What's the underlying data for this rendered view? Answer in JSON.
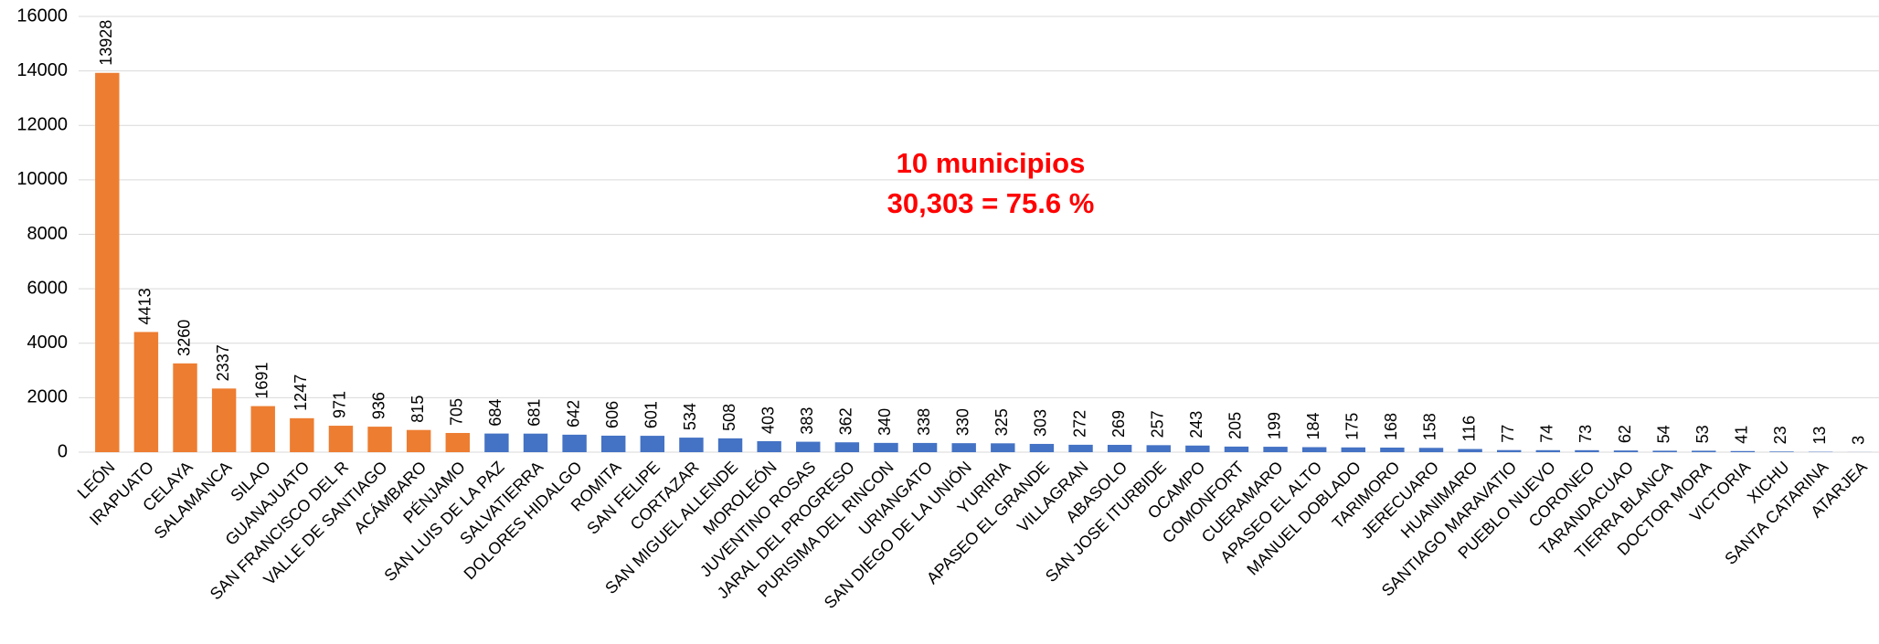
{
  "chart_data": {
    "type": "bar",
    "annotations": [
      "10 municipios",
      "30,303 = 75.6 %"
    ],
    "categories": [
      "LEÓN",
      "IRAPUATO",
      "CELAYA",
      "SALAMANCA",
      "SILAO",
      "GUANAJUATO",
      "SAN FRANCISCO DEL R",
      "VALLE DE SANTIAGO",
      "ACÁMBARO",
      "PÉNJAMO",
      "SAN LUIS DE LA PAZ",
      "SALVATIERRA",
      "DOLORES HIDALGO",
      "ROMITA",
      "SAN FELIPE",
      "CORTAZAR",
      "SAN MIGUEL ALLENDE",
      "MOROLEÓN",
      "JUVENTINO ROSAS",
      "JARAL DEL PROGRESO",
      "PURISIMA DEL RINCON",
      "URIANGATO",
      "SAN DIEGO DE LA UNIÓN",
      "YURIRIA",
      "APASEO EL GRANDE",
      "VILLAGRAN",
      "ABASOLO",
      "SAN JOSE ITURBIDE",
      "OCAMPO",
      "COMONFORT",
      "CUERAMARO",
      "APASEO EL ALTO",
      "MANUEL DOBLADO",
      "TARIMORO",
      "JERECUARO",
      "HUANIMARO",
      "SANTIAGO MARAVATIO",
      "PUEBLO NUEVO",
      "CORONEO",
      "TARANDACUAO",
      "TIERRA BLANCA",
      "DOCTOR MORA",
      "VICTORIA",
      "XICHU",
      "SANTA CATARINA",
      "ATARJEA"
    ],
    "values": [
      13928,
      4413,
      3260,
      2337,
      1691,
      1247,
      971,
      936,
      815,
      705,
      684,
      681,
      642,
      606,
      601,
      534,
      508,
      403,
      383,
      362,
      340,
      338,
      330,
      325,
      303,
      272,
      269,
      257,
      243,
      205,
      199,
      184,
      175,
      168,
      158,
      116,
      77,
      74,
      73,
      62,
      54,
      53,
      41,
      23,
      13,
      3
    ],
    "colors": [
      "#ed7d31",
      "#ed7d31",
      "#ed7d31",
      "#ed7d31",
      "#ed7d31",
      "#ed7d31",
      "#ed7d31",
      "#ed7d31",
      "#ed7d31",
      "#ed7d31",
      "#4472c4",
      "#4472c4",
      "#4472c4",
      "#4472c4",
      "#4472c4",
      "#4472c4",
      "#4472c4",
      "#4472c4",
      "#4472c4",
      "#4472c4",
      "#4472c4",
      "#4472c4",
      "#4472c4",
      "#4472c4",
      "#4472c4",
      "#4472c4",
      "#4472c4",
      "#4472c4",
      "#4472c4",
      "#4472c4",
      "#4472c4",
      "#4472c4",
      "#4472c4",
      "#4472c4",
      "#4472c4",
      "#4472c4",
      "#4472c4",
      "#4472c4",
      "#4472c4",
      "#4472c4",
      "#4472c4",
      "#4472c4",
      "#4472c4",
      "#4472c4",
      "#4472c4",
      "#4472c4"
    ],
    "annotation_color": "#ff0000",
    "ylim": [
      0,
      16000
    ],
    "yticks": [
      0,
      2000,
      4000,
      6000,
      8000,
      10000,
      12000,
      14000,
      16000
    ],
    "grid": true
  }
}
